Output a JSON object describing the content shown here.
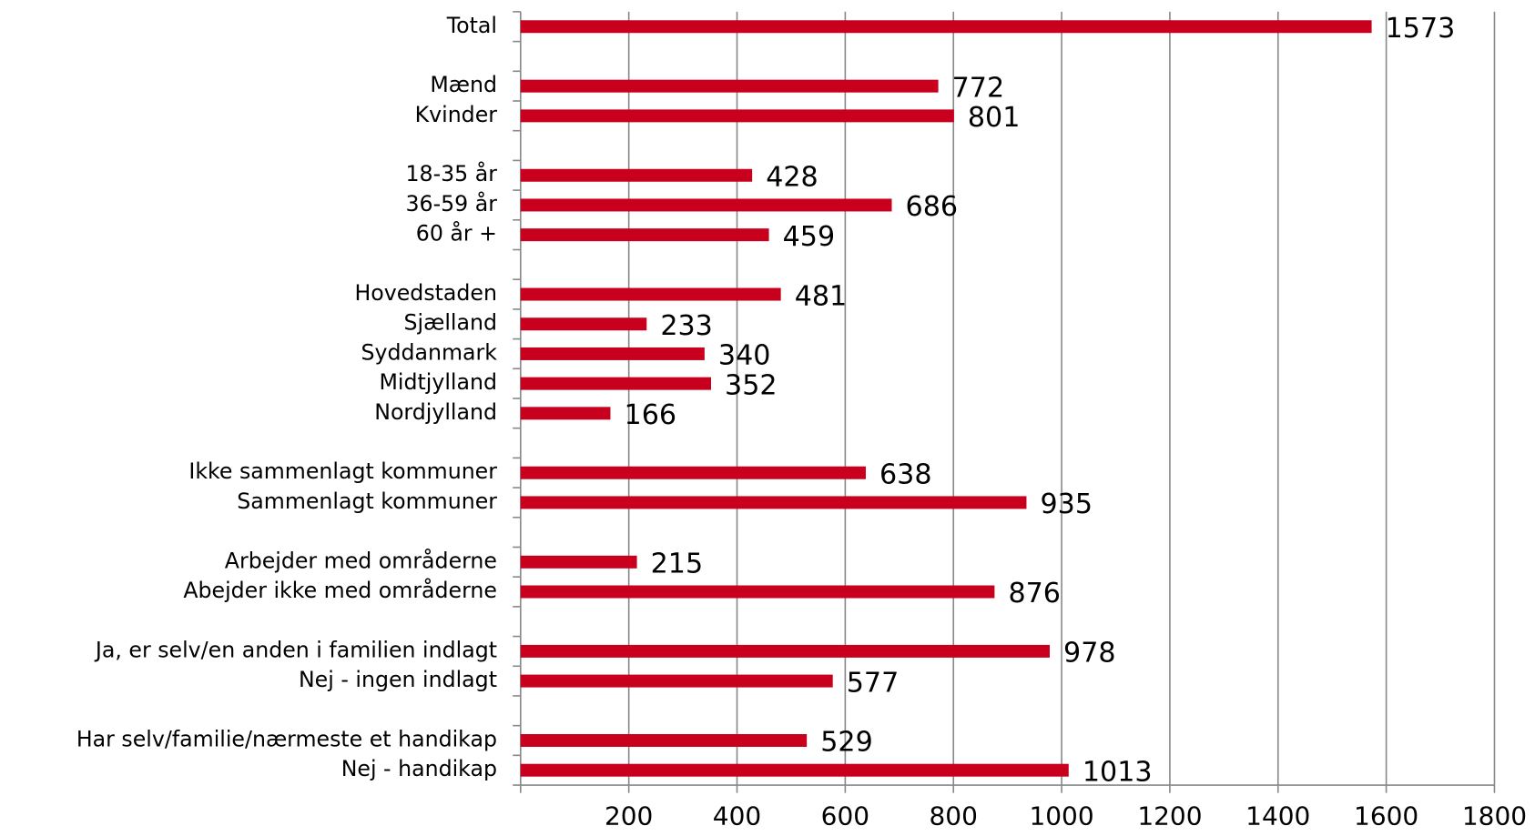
{
  "chart_data": {
    "type": "bar",
    "orientation": "horizontal",
    "categories": [
      "Total",
      null,
      "Mænd",
      "Kvinder",
      null,
      "18-35 år",
      "36-59 år",
      "60 år +",
      null,
      "Hovedstaden",
      "Sjælland",
      "Syddanmark",
      "Midtjylland",
      "Nordjylland",
      null,
      "Ikke sammenlagt kommuner",
      "Sammenlagt kommuner",
      null,
      "Arbejder med områderne",
      "Abejder ikke med områderne",
      null,
      "Ja, er selv/en anden i familien indlagt",
      "Nej - ingen indlagt",
      null,
      "Har selv/familie/nærmeste et handikap",
      "Nej - handikap"
    ],
    "values": [
      1573,
      null,
      772,
      801,
      null,
      428,
      686,
      459,
      null,
      481,
      233,
      340,
      352,
      166,
      null,
      638,
      935,
      null,
      215,
      876,
      null,
      978,
      577,
      null,
      529,
      1013
    ],
    "color": "#c8001e",
    "xlim": [
      0,
      1800
    ],
    "xticks": [
      200,
      400,
      600,
      800,
      1000,
      1200,
      1400,
      1600,
      1800
    ],
    "grid": true
  }
}
